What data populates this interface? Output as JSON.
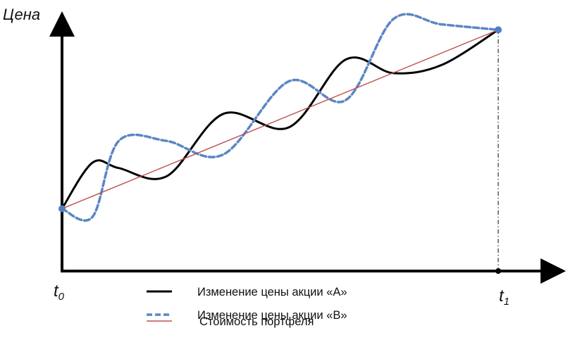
{
  "chart_data": {
    "type": "line",
    "title": "",
    "ylabel": "Цена",
    "xlabel": "",
    "x_tick_labels": [
      {
        "main": "t",
        "sub": "0"
      },
      {
        "main": "t",
        "sub": "1"
      }
    ],
    "xlim": [
      0,
      1
    ],
    "ylim": [
      0,
      1
    ],
    "grid": false,
    "legend_position": "bottom-center",
    "series": [
      {
        "name": "Изменение цены акции «A»",
        "color": "#000000",
        "style": "solid",
        "x": [
          0.0,
          0.07,
          0.13,
          0.24,
          0.37,
          0.52,
          0.65,
          0.76,
          0.87,
          1.0
        ],
        "y": [
          0.23,
          0.4,
          0.38,
          0.35,
          0.58,
          0.53,
          0.78,
          0.73,
          0.76,
          0.89
        ]
      },
      {
        "name": "Изменение цены акции «B»",
        "color": "#5b86c4",
        "style": "dashed",
        "x": [
          0.0,
          0.07,
          0.13,
          0.24,
          0.37,
          0.52,
          0.65,
          0.76,
          0.87,
          1.0
        ],
        "y": [
          0.23,
          0.2,
          0.48,
          0.48,
          0.43,
          0.7,
          0.63,
          0.93,
          0.91,
          0.89
        ]
      },
      {
        "name": "Стоимость портфеля",
        "color": "#c0504d",
        "style": "solid",
        "x": [
          0.0,
          1.0
        ],
        "y": [
          0.23,
          0.89
        ]
      }
    ],
    "markers": [
      {
        "x": 0.0,
        "y": 0.23,
        "color": "#4f7fc4"
      },
      {
        "x": 1.0,
        "y": 0.89,
        "color": "#4f7fc4"
      }
    ],
    "annotations": [
      {
        "type": "vertical-dash-dot-line",
        "x": 1.0,
        "color": "#000000"
      }
    ]
  }
}
